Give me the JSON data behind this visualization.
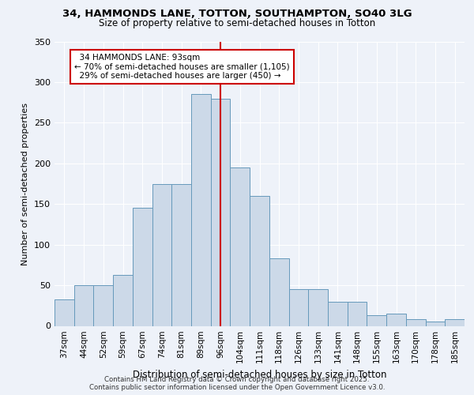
{
  "title_line1": "34, HAMMONDS LANE, TOTTON, SOUTHAMPTON, SO40 3LG",
  "title_line2": "Size of property relative to semi-detached houses in Totton",
  "xlabel": "Distribution of semi-detached houses by size in Totton",
  "ylabel": "Number of semi-detached properties",
  "categories": [
    "37sqm",
    "44sqm",
    "52sqm",
    "59sqm",
    "67sqm",
    "74sqm",
    "81sqm",
    "89sqm",
    "96sqm",
    "104sqm",
    "111sqm",
    "118sqm",
    "126sqm",
    "133sqm",
    "141sqm",
    "148sqm",
    "155sqm",
    "163sqm",
    "170sqm",
    "178sqm",
    "185sqm"
  ],
  "values": [
    33,
    50,
    50,
    63,
    145,
    175,
    175,
    285,
    280,
    195,
    160,
    83,
    45,
    45,
    30,
    30,
    13,
    15,
    8,
    5,
    8
  ],
  "bar_color": "#ccd9e8",
  "bar_edge_color": "#6699bb",
  "property_line_index": 8.5,
  "property_label": "34 HAMMONDS LANE: 93sqm",
  "pct_smaller": 70,
  "pct_smaller_count": 1105,
  "pct_larger": 29,
  "pct_larger_count": 450,
  "annotation_box_color": "#cc0000",
  "ylim": [
    0,
    350
  ],
  "yticks": [
    0,
    50,
    100,
    150,
    200,
    250,
    300,
    350
  ],
  "background_color": "#eef2f9",
  "grid_color": "#ffffff",
  "title_fontsize": 9.5,
  "subtitle_fontsize": 8.5,
  "footer_line1": "Contains HM Land Registry data © Crown copyright and database right 2025.",
  "footer_line2": "Contains public sector information licensed under the Open Government Licence v3.0."
}
